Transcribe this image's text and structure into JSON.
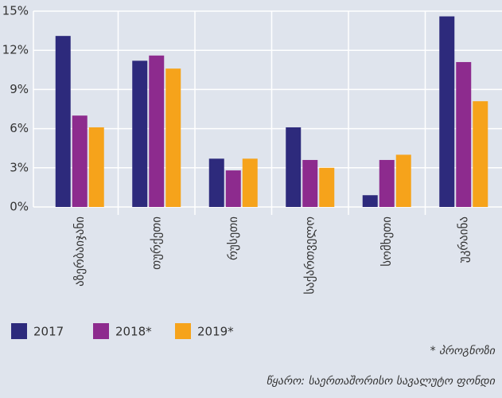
{
  "chart_data": {
    "type": "bar",
    "categories": [
      "აზერბაიჯანი",
      "თურქეთი",
      "რუსეთი",
      "საქართველო",
      "სომხეთი",
      "უკრაინა"
    ],
    "series": [
      {
        "name": "2017",
        "color": "#2d2a7c",
        "values": [
          13.1,
          11.2,
          3.7,
          6.1,
          0.9,
          14.6
        ]
      },
      {
        "name": "2018*",
        "color": "#8d2b8e",
        "values": [
          7.0,
          11.6,
          2.8,
          3.6,
          3.6,
          11.1
        ]
      },
      {
        "name": "2019*",
        "color": "#f6a31b",
        "values": [
          6.1,
          10.6,
          3.7,
          3.0,
          4.0,
          8.1
        ]
      }
    ],
    "ylim": [
      0,
      15
    ],
    "yticks": [
      {
        "value": 0,
        "label": "0%"
      },
      {
        "value": 3,
        "label": "3%"
      },
      {
        "value": 6,
        "label": "6%"
      },
      {
        "value": 9,
        "label": "9%"
      },
      {
        "value": 12,
        "label": "12%"
      },
      {
        "value": 15,
        "label": "15%"
      }
    ],
    "grid": true,
    "note": "* პროგნოზი",
    "source": "წყარო: საერთაშორისო სავალუტო ფონდი"
  }
}
